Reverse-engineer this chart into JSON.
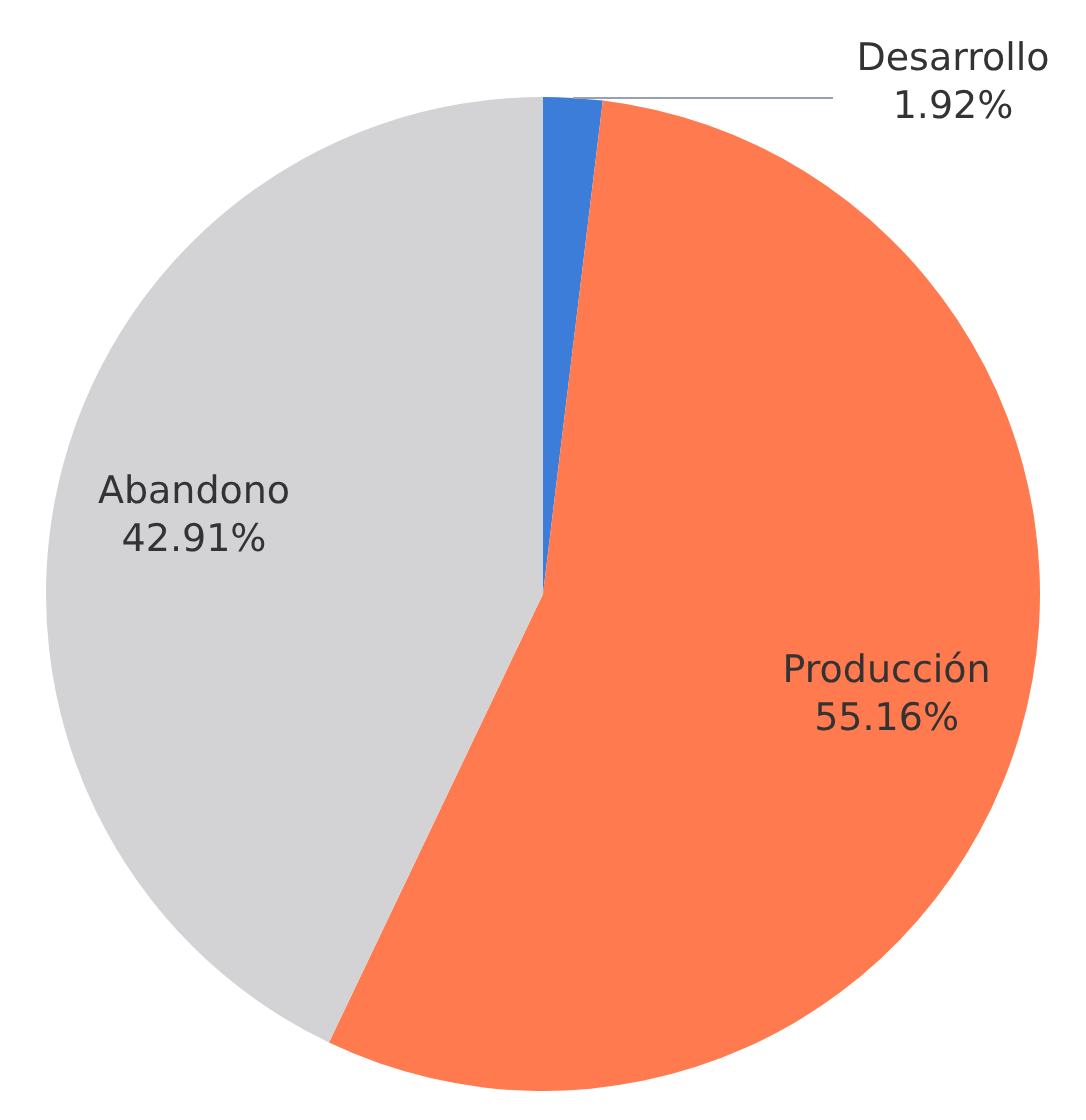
{
  "chart_data": {
    "type": "pie",
    "categories": [
      "Desarrollo",
      "Producción",
      "Abandono"
    ],
    "values": [
      1.92,
      55.16,
      42.91
    ],
    "colors": [
      "#3b7dd8",
      "#ff7a4f",
      "#d3d3d5"
    ],
    "value_labels": [
      "1.92%",
      "55.16%",
      "42.91%"
    ],
    "legend": false
  }
}
